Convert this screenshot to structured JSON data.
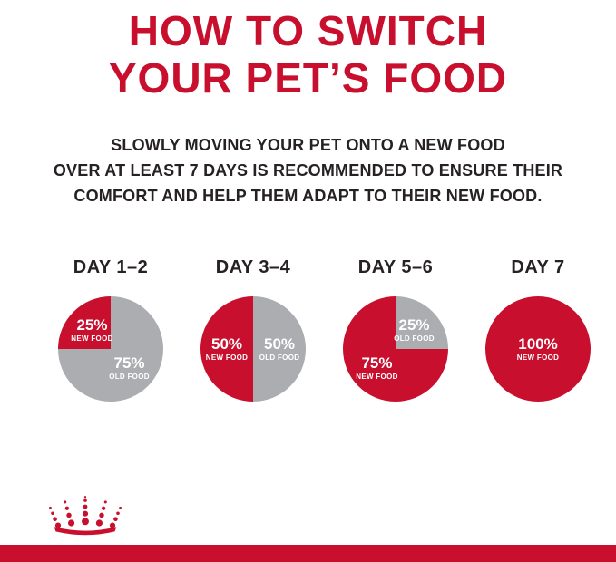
{
  "content": {
    "title_line1": "HOW TO SWITCH",
    "title_line2": "YOUR PET’S FOOD",
    "subtitle_line1": "SLOWLY MOVING YOUR PET ONTO A NEW FOOD",
    "subtitle_line2": "OVER AT LEAST 7 DAYS IS RECOMMENDED TO ENSURE THEIR",
    "subtitle_line3": "COMFORT AND HELP THEM ADAPT TO THEIR NEW FOOD."
  },
  "colors": {
    "brand_red": "#c8102e",
    "pie_gray": "#abadb0",
    "text_dark": "#262223",
    "label_white": "#ffffff"
  },
  "logo": {
    "icon": "royal-canin-crown-logo"
  },
  "chart_data": [
    {
      "type": "pie",
      "title": "DAY 1–2",
      "start_angle": 270,
      "legend_position": "none",
      "slices": [
        {
          "label": "NEW FOOD",
          "value": 25,
          "pct_label": "25%",
          "color": "#c8102e"
        },
        {
          "label": "OLD FOOD",
          "value": 75,
          "pct_label": "75%",
          "color": "#abadb0"
        }
      ]
    },
    {
      "type": "pie",
      "title": "DAY 3–4",
      "start_angle": 180,
      "legend_position": "none",
      "slices": [
        {
          "label": "NEW FOOD",
          "value": 50,
          "pct_label": "50%",
          "color": "#c8102e"
        },
        {
          "label": "OLD FOOD",
          "value": 50,
          "pct_label": "50%",
          "color": "#abadb0"
        }
      ]
    },
    {
      "type": "pie",
      "title": "DAY 5–6",
      "start_angle": 90,
      "legend_position": "none",
      "slices": [
        {
          "label": "NEW FOOD",
          "value": 75,
          "pct_label": "75%",
          "color": "#c8102e"
        },
        {
          "label": "OLD FOOD",
          "value": 25,
          "pct_label": "25%",
          "color": "#abadb0"
        }
      ]
    },
    {
      "type": "pie",
      "title": "DAY 7",
      "start_angle": 0,
      "legend_position": "none",
      "slices": [
        {
          "label": "NEW FOOD",
          "value": 100,
          "pct_label": "100%",
          "color": "#c8102e"
        }
      ]
    }
  ]
}
